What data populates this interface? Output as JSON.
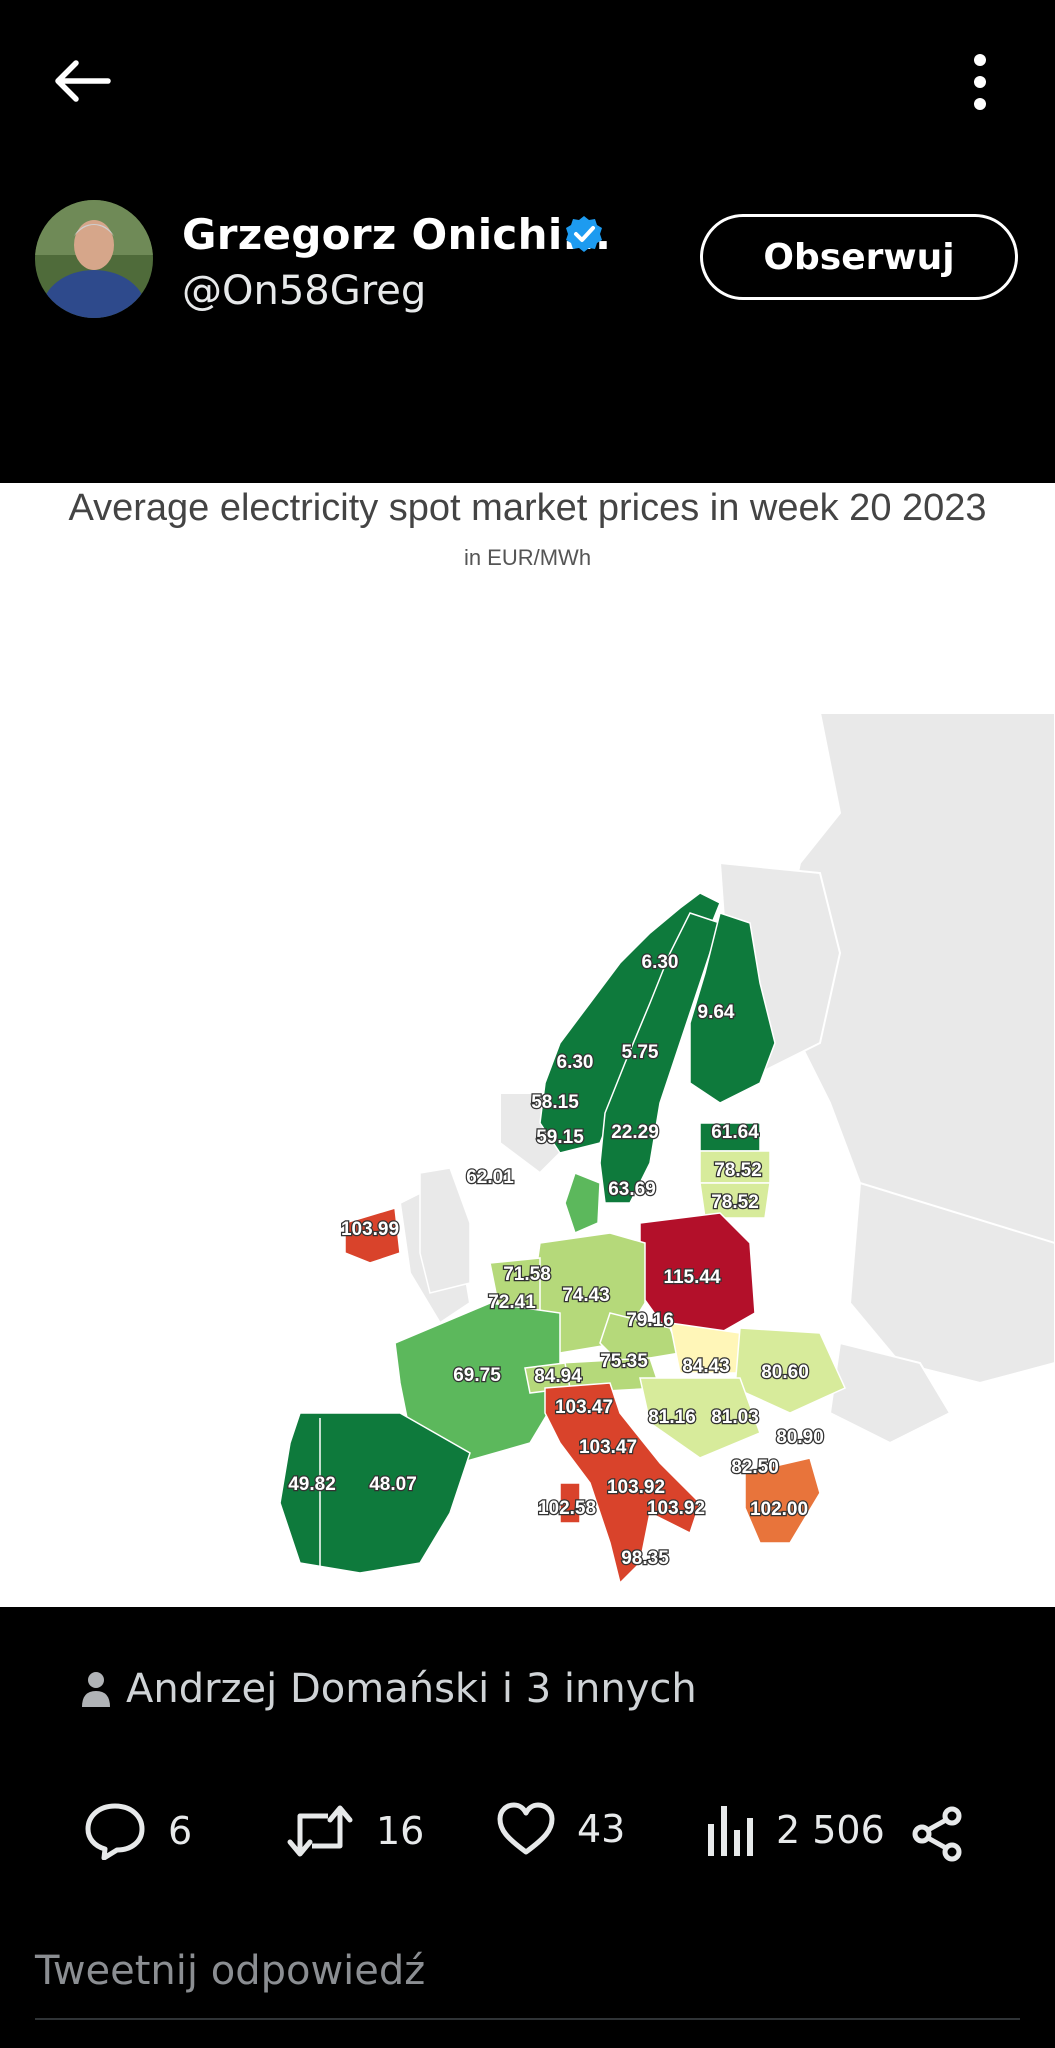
{
  "header": {
    "back_icon": "arrow-left-icon",
    "more_icon": "more-vertical-icon"
  },
  "author": {
    "name": "Grzegorz Onichi...",
    "handle": "@On58Greg",
    "verified": true,
    "follow_label": "Obserwuj"
  },
  "media": {
    "title": "Average electricity spot market prices in week 20 2023",
    "subtitle": "in EUR/MWh",
    "price_labels": [
      "6.30",
      "9.64",
      "5.75",
      "6.30",
      "58.15",
      "59.15",
      "22.29",
      "61.64",
      "78.52",
      "78.52",
      "62.01",
      "63.69",
      "103.99",
      "115.44",
      "71.58",
      "72.41",
      "74.43",
      "79.16",
      "75.35",
      "84.43",
      "80.60",
      "69.75",
      "84.94",
      "103.47",
      "81.16",
      "81.03",
      "80.90",
      "103.47",
      "82.50",
      "49.82",
      "48.07",
      "103.92",
      "102.58",
      "103.92",
      "102.00",
      "98.35"
    ],
    "colors": {
      "dark_green": "#0e7a3c",
      "green": "#5cb85c",
      "light_green": "#b5d97a",
      "pale_yellow": "#fff6b8",
      "red": "#d9432b",
      "dark_red": "#b3102a",
      "orange": "#e8743b",
      "grey": "#e9e9e9"
    }
  },
  "liked_by": "Andrzej Domański i 3 innych",
  "actions": {
    "replies": "6",
    "retweets": "16",
    "likes": "43",
    "views": "2 506"
  },
  "reply_placeholder": "Tweetnij odpowiedź"
}
